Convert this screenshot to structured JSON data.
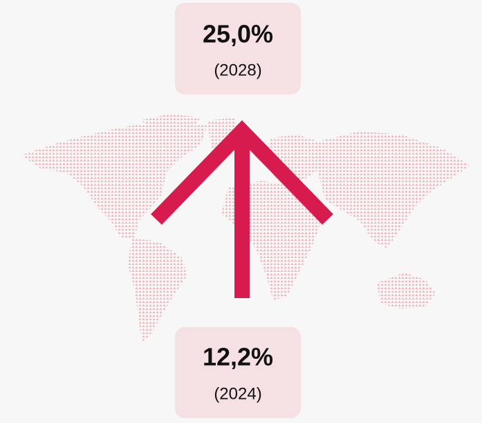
{
  "top": {
    "value": "25,0%",
    "year": "(2028)"
  },
  "bottom": {
    "value": "12,2%",
    "year": "(2024)"
  }
}
